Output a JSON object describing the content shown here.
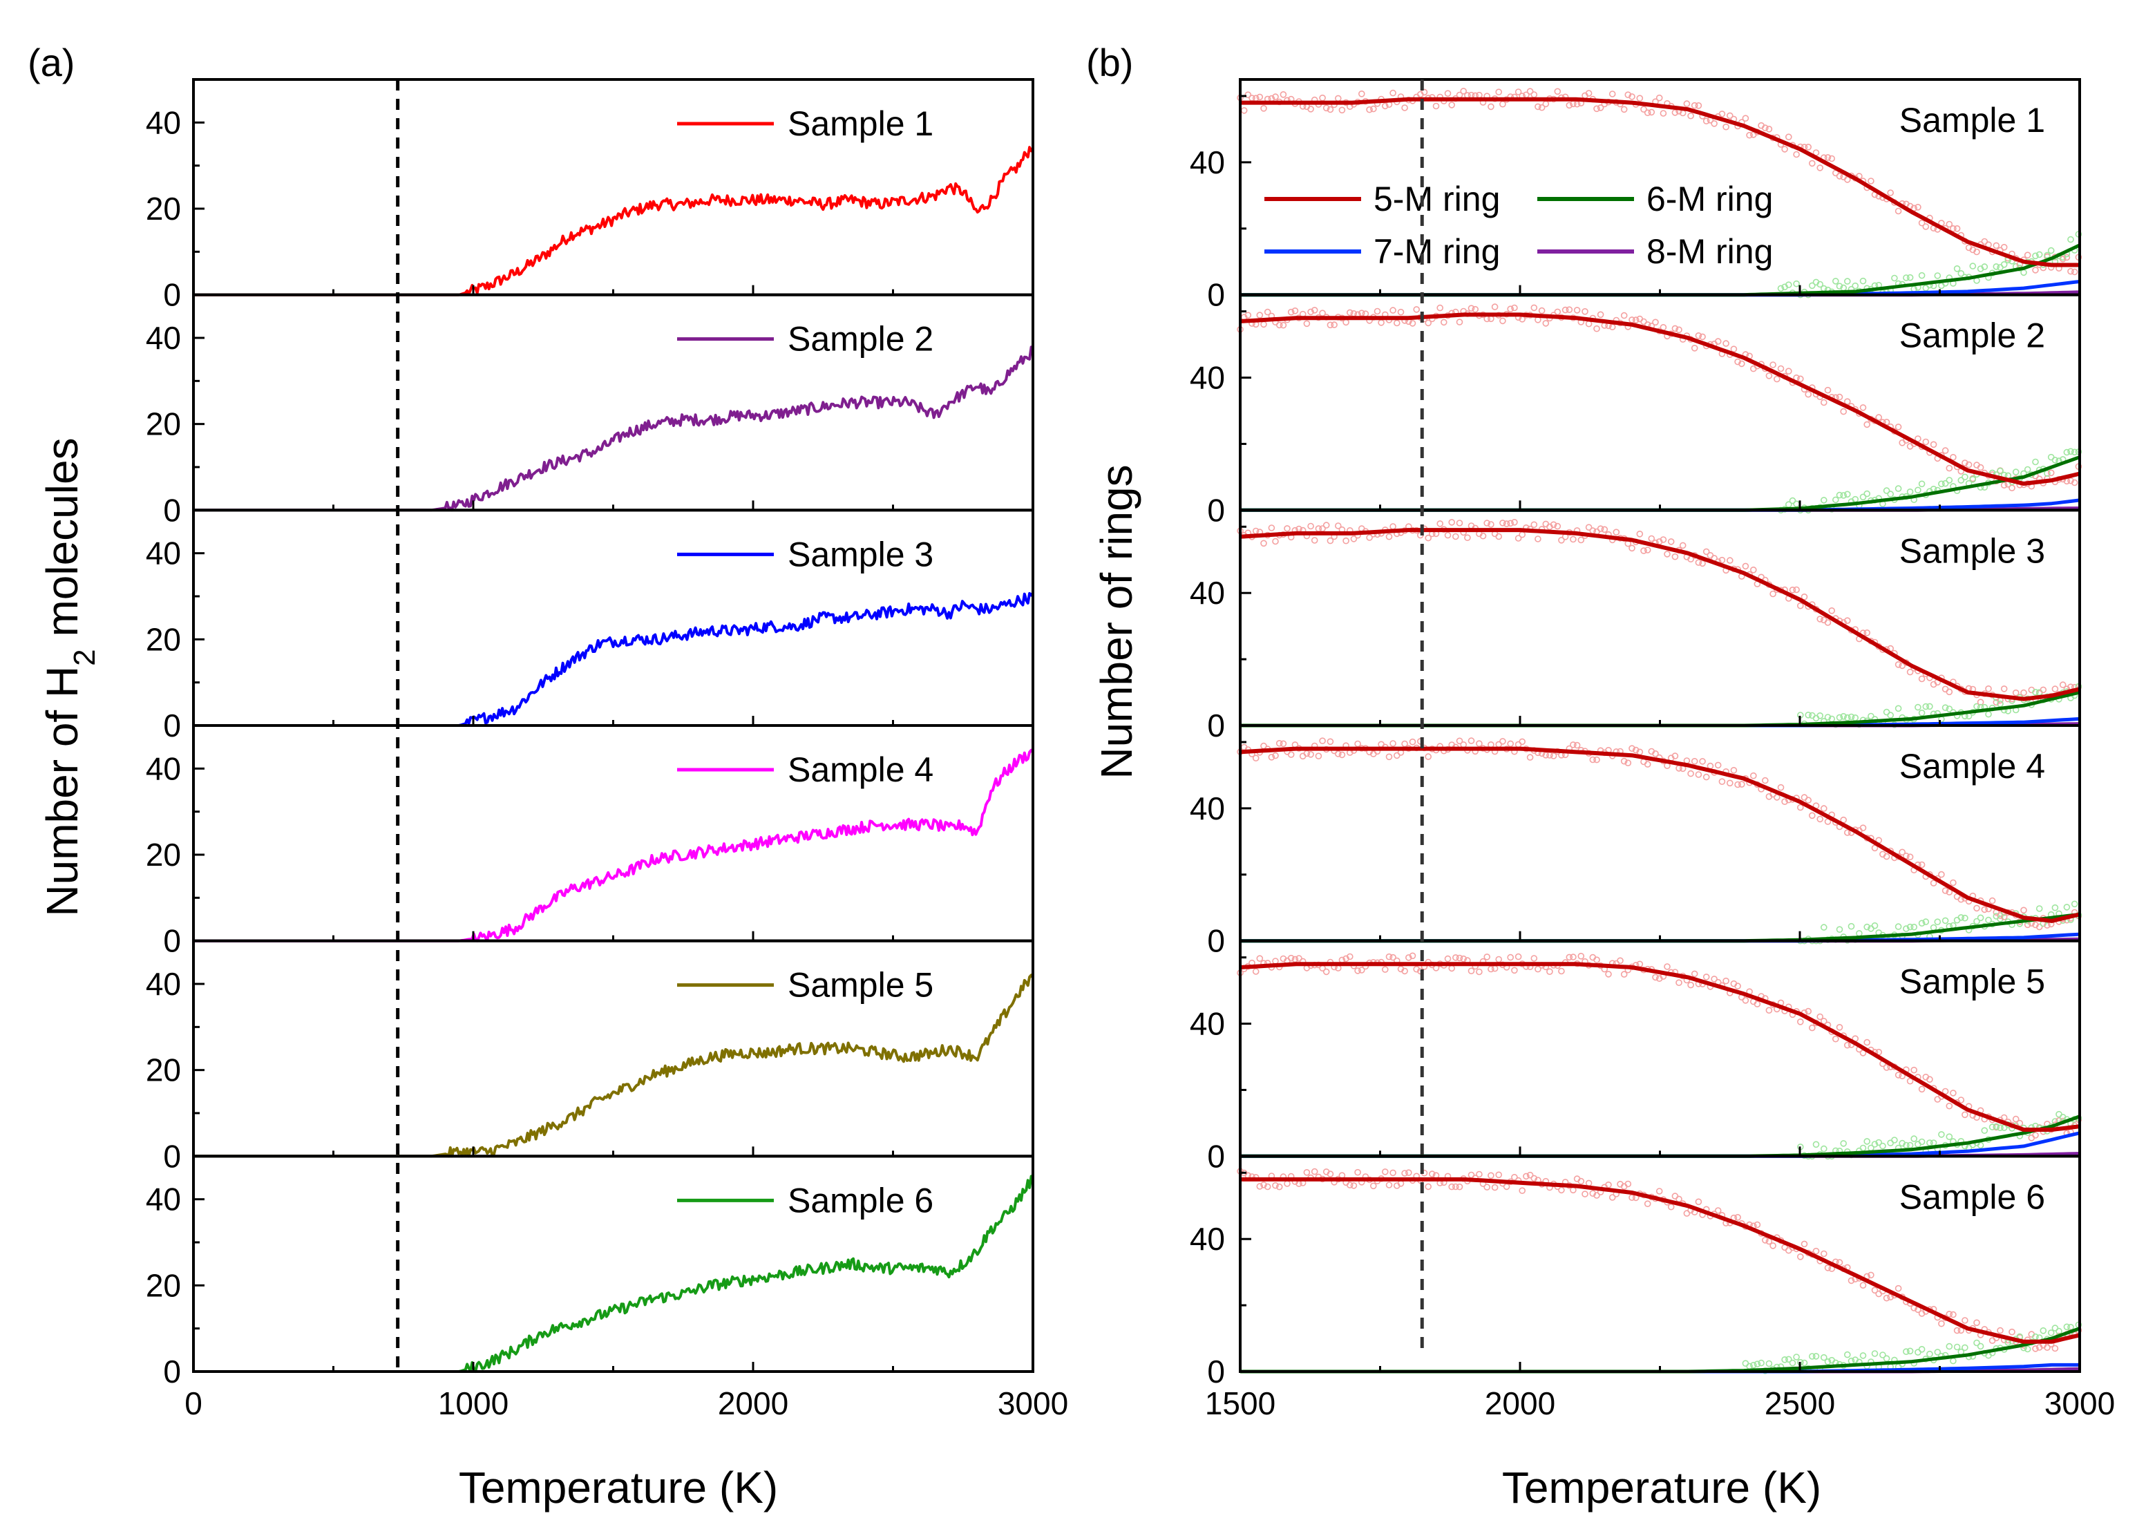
{
  "panels": {
    "a": {
      "label": "(a)",
      "xlabel": "Temperature (K)",
      "ylabel_prefix": "Number of H",
      "ylabel_sub": "2",
      "ylabel_suffix": " molecules"
    },
    "b": {
      "label": "(b)",
      "xlabel": "Temperature (K)",
      "ylabel": "Number of rings"
    }
  },
  "chart_data": [
    {
      "id": "a",
      "type": "line",
      "title": "(a)",
      "xlabel": "Temperature (K)",
      "ylabel": "Number of H2 molecules",
      "xlim": [
        0,
        3000
      ],
      "ylim": [
        0,
        50
      ],
      "xticks": [
        0,
        1000,
        2000,
        3000
      ],
      "yticks": [
        0,
        20,
        40
      ],
      "vline_x": 730,
      "x": [
        0,
        730,
        850,
        950,
        1050,
        1150,
        1250,
        1350,
        1450,
        1550,
        1650,
        1750,
        1850,
        1950,
        2050,
        2150,
        2250,
        2350,
        2450,
        2550,
        2650,
        2700,
        2750,
        2800,
        2850,
        2900,
        2950,
        3000
      ],
      "series": [
        {
          "name": "Sample 1",
          "color": "#ff0000",
          "values": [
            0,
            0,
            0,
            0,
            2,
            5,
            9,
            14,
            16,
            19,
            21,
            21,
            22,
            22,
            22,
            22,
            21,
            22,
            21,
            22,
            23,
            25,
            24,
            19,
            22,
            27,
            30,
            35
          ]
        },
        {
          "name": "Sample 2",
          "color": "#7f1f8f",
          "values": [
            0,
            0,
            0,
            1,
            4,
            7,
            10,
            12,
            14,
            18,
            20,
            21,
            21,
            22,
            22,
            23,
            24,
            25,
            25,
            25,
            22,
            25,
            27,
            29,
            27,
            31,
            34,
            37
          ]
        },
        {
          "name": "Sample 3",
          "color": "#0000ff",
          "values": [
            0,
            0,
            0,
            0,
            2,
            4,
            10,
            15,
            19,
            20,
            20,
            21,
            22,
            22,
            23,
            23,
            25,
            25,
            26,
            27,
            27,
            26,
            28,
            27,
            27,
            28,
            29,
            30
          ]
        },
        {
          "name": "Sample 4",
          "color": "#ff00ff",
          "values": [
            0,
            0,
            0,
            0,
            1,
            3,
            8,
            12,
            14,
            16,
            19,
            20,
            21,
            22,
            23,
            24,
            25,
            26,
            27,
            27,
            27,
            26,
            27,
            25,
            35,
            39,
            42,
            44
          ]
        },
        {
          "name": "Sample 5",
          "color": "#7f7000",
          "values": [
            0,
            0,
            0,
            1,
            1,
            3,
            6,
            9,
            13,
            16,
            19,
            21,
            23,
            24,
            24,
            25,
            25,
            25,
            24,
            23,
            24,
            25,
            24,
            23,
            28,
            33,
            38,
            42
          ]
        },
        {
          "name": "Sample 6",
          "color": "#169b16",
          "values": [
            0,
            0,
            0,
            0,
            2,
            5,
            9,
            11,
            13,
            15,
            17,
            18,
            20,
            21,
            22,
            23,
            24,
            25,
            24,
            24,
            24,
            23,
            25,
            28,
            33,
            36,
            40,
            45
          ]
        }
      ],
      "panel_labels": [
        "Sample 1",
        "Sample 2",
        "Sample 3",
        "Sample 4",
        "Sample 5",
        "Sample 6"
      ]
    },
    {
      "id": "b",
      "type": "line",
      "title": "(b)",
      "xlabel": "Temperature (K)",
      "ylabel": "Number of rings",
      "xlim": [
        1500,
        3000
      ],
      "ylim": [
        0,
        65
      ],
      "xticks": [
        1500,
        2000,
        2500,
        3000
      ],
      "yticks": [
        0,
        40
      ],
      "vline_x": 1825,
      "legend": [
        {
          "name": "5-M ring",
          "color": "#c00000"
        },
        {
          "name": "6-M ring",
          "color": "#007000"
        },
        {
          "name": "7-M ring",
          "color": "#0033ff"
        },
        {
          "name": "8-M ring",
          "color": "#8020a0"
        }
      ],
      "x": [
        1500,
        1600,
        1700,
        1800,
        1900,
        2000,
        2100,
        2200,
        2300,
        2400,
        2500,
        2600,
        2700,
        2800,
        2900,
        2950,
        3000
      ],
      "panels": [
        {
          "label": "Sample 1",
          "five": [
            58,
            58,
            58,
            59,
            59,
            59,
            59,
            58,
            56,
            51,
            44,
            35,
            25,
            16,
            10,
            9,
            9
          ],
          "six": [
            0,
            0,
            0,
            0,
            0,
            0,
            0,
            0,
            0,
            0,
            0.5,
            1,
            3,
            5,
            8,
            11,
            15
          ],
          "seven": [
            0,
            0,
            0,
            0,
            0,
            0,
            0,
            0,
            0,
            0,
            0,
            0.3,
            0.6,
            1,
            2,
            3,
            4
          ],
          "eight": [
            0,
            0,
            0,
            0,
            0,
            0,
            0,
            0,
            0,
            0,
            0,
            0,
            0,
            0.2,
            0.4,
            0.6,
            0.8
          ]
        },
        {
          "label": "Sample 2",
          "five": [
            57,
            58,
            58,
            58,
            59,
            59,
            58,
            56,
            52,
            46,
            38,
            30,
            21,
            12,
            8,
            9,
            11
          ],
          "six": [
            0,
            0,
            0,
            0,
            0,
            0,
            0,
            0,
            0,
            0,
            0.5,
            2,
            4,
            7,
            10,
            13,
            16
          ],
          "seven": [
            0,
            0,
            0,
            0,
            0,
            0,
            0,
            0,
            0,
            0,
            0,
            0.3,
            0.6,
            1,
            1.5,
            2,
            3
          ],
          "eight": [
            0,
            0,
            0,
            0,
            0,
            0,
            0,
            0,
            0,
            0,
            0,
            0,
            0,
            0.2,
            0.4,
            0.5,
            0.6
          ]
        },
        {
          "label": "Sample 3",
          "five": [
            57,
            58,
            58,
            59,
            59,
            59,
            58,
            56,
            52,
            46,
            38,
            28,
            18,
            10,
            8,
            9,
            11
          ],
          "six": [
            0,
            0,
            0,
            0,
            0,
            0,
            0,
            0,
            0,
            0,
            0.3,
            1,
            2,
            4,
            6,
            8,
            10
          ],
          "seven": [
            0,
            0,
            0,
            0,
            0,
            0,
            0,
            0,
            0,
            0,
            0,
            0.2,
            0.4,
            0.7,
            1,
            1.5,
            2
          ],
          "eight": [
            0,
            0,
            0,
            0,
            0,
            0,
            0,
            0,
            0,
            0,
            0,
            0,
            0,
            0.2,
            0.3,
            0.4,
            0.5
          ]
        },
        {
          "label": "Sample 4",
          "five": [
            57,
            58,
            58,
            58,
            58,
            58,
            57,
            56,
            53,
            49,
            42,
            33,
            23,
            13,
            7,
            6,
            8
          ],
          "six": [
            0,
            0,
            0,
            0,
            0,
            0,
            0,
            0,
            0,
            0,
            0.3,
            1,
            2,
            4,
            6,
            7,
            8
          ],
          "seven": [
            0,
            0,
            0,
            0,
            0,
            0,
            0,
            0,
            0,
            0,
            0,
            0.2,
            0.4,
            0.7,
            1,
            1.5,
            2
          ],
          "eight": [
            0,
            0,
            0,
            0,
            0,
            0,
            0,
            0,
            0,
            0,
            0,
            0,
            0,
            0.2,
            0.3,
            0.4,
            0.5
          ]
        },
        {
          "label": "Sample 5",
          "five": [
            57,
            58,
            58,
            58,
            58,
            58,
            58,
            57,
            54,
            49,
            43,
            34,
            24,
            14,
            8,
            8,
            9
          ],
          "six": [
            0,
            0,
            0,
            0,
            0,
            0,
            0,
            0,
            0,
            0,
            0.3,
            1,
            2,
            4,
            7,
            9,
            12
          ],
          "seven": [
            0,
            0,
            0,
            0,
            0,
            0,
            0,
            0,
            0,
            0,
            0,
            0.3,
            0.7,
            1.5,
            3,
            5,
            7
          ],
          "eight": [
            0,
            0,
            0,
            0,
            0,
            0,
            0,
            0,
            0,
            0,
            0,
            0,
            0,
            0.2,
            0.4,
            0.6,
            0.8
          ]
        },
        {
          "label": "Sample 6",
          "five": [
            58,
            58,
            58,
            58,
            58,
            57,
            56,
            54,
            50,
            44,
            37,
            29,
            21,
            13,
            9,
            9,
            11
          ],
          "six": [
            0,
            0,
            0,
            0,
            0,
            0,
            0,
            0,
            0,
            0.3,
            1,
            2,
            3,
            5,
            8,
            10,
            13
          ],
          "seven": [
            0,
            0,
            0,
            0,
            0,
            0,
            0,
            0,
            0,
            0,
            0,
            0.3,
            0.6,
            1,
            1.5,
            2,
            2
          ],
          "eight": [
            0,
            0,
            0,
            0,
            0,
            0,
            0,
            0,
            0,
            0,
            0,
            0,
            0,
            0.2,
            0.4,
            0.6,
            0.8
          ]
        }
      ]
    }
  ]
}
